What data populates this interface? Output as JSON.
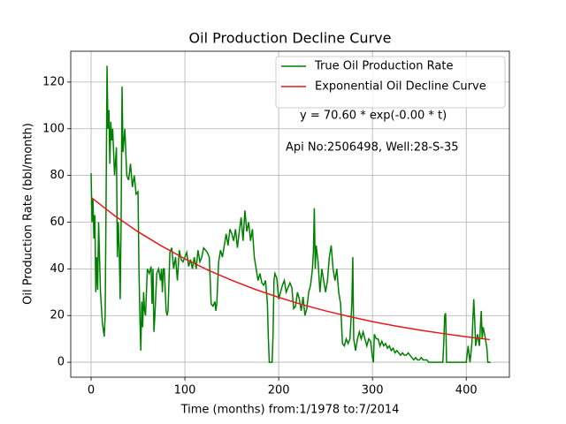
{
  "chart_data": {
    "type": "line",
    "title": "Oil Production Decline Curve",
    "x_label": "Time (months) from:1/1978 to:7/2014",
    "y_label": "Oil Production Rate (bbl/month)",
    "annotations": [
      "y = 70.60 * exp(-0.00 * t)",
      "Api No:2506498, Well:28-S-35"
    ],
    "xlim": [
      -21.7,
      446
    ],
    "ylim": [
      -6.4,
      133.2
    ],
    "xticks": [
      0,
      100,
      200,
      300,
      400
    ],
    "yticks": [
      0,
      20,
      40,
      60,
      80,
      100,
      120
    ],
    "grid": true,
    "legend": "upper right",
    "series": [
      {
        "name": "True Oil Production Rate",
        "color": "#008000",
        "x": [
          0,
          1,
          2,
          3,
          4,
          5,
          6,
          7,
          8,
          9,
          10,
          12,
          14,
          15,
          16,
          17,
          18,
          19,
          20,
          21,
          22,
          23,
          25,
          27,
          28,
          29,
          30,
          31,
          32,
          33,
          34,
          36,
          38,
          40,
          42,
          44,
          46,
          48,
          50,
          51,
          52,
          53,
          54,
          55,
          56,
          57,
          58,
          60,
          62,
          64,
          65,
          66,
          67,
          68,
          70,
          72,
          74,
          75,
          76,
          77,
          78,
          80,
          81,
          82,
          84,
          86,
          88,
          90,
          92,
          94,
          96,
          98,
          100,
          102,
          104,
          106,
          108,
          110,
          112,
          114,
          116,
          118,
          120,
          122,
          124,
          126,
          128,
          130,
          132,
          133,
          134,
          136,
          138,
          140,
          142,
          144,
          146,
          148,
          150,
          152,
          154,
          156,
          158,
          160,
          162,
          164,
          166,
          168,
          170,
          172,
          174,
          176,
          178,
          180,
          182,
          184,
          186,
          188,
          189,
          190,
          193,
          194,
          195,
          196,
          198,
          200,
          202,
          204,
          206,
          208,
          210,
          212,
          214,
          216,
          218,
          220,
          222,
          224,
          226,
          228,
          230,
          232,
          234,
          236,
          237,
          238,
          239,
          240,
          242,
          244,
          246,
          248,
          250,
          252,
          254,
          256,
          258,
          260,
          262,
          264,
          266,
          268,
          270,
          272,
          274,
          276,
          278,
          279,
          280,
          282,
          284,
          286,
          288,
          290,
          292,
          294,
          296,
          298,
          300,
          301,
          302,
          304,
          306,
          308,
          310,
          312,
          314,
          316,
          318,
          320,
          322,
          324,
          326,
          328,
          330,
          332,
          334,
          336,
          338,
          340,
          342,
          344,
          346,
          348,
          350,
          352,
          354,
          356,
          358,
          360,
          375,
          376,
          377,
          378,
          379,
          400,
          402,
          404,
          406,
          408,
          409,
          410,
          412,
          414,
          416,
          417,
          418,
          420,
          422,
          423,
          426
        ],
        "values": [
          81,
          60,
          70,
          53,
          63,
          30,
          45,
          31,
          60,
          45,
          30,
          17,
          11,
          20,
          70,
          127,
          100,
          108,
          85,
          103,
          95,
          100,
          80,
          92,
          45,
          60,
          48,
          27,
          60,
          118,
          90,
          100,
          80,
          78,
          85,
          75,
          80,
          72,
          73,
          40,
          20,
          5,
          26,
          15,
          30,
          22,
          20,
          40,
          38,
          41,
          25,
          40,
          13,
          20,
          38,
          40,
          35,
          40,
          30,
          40,
          40,
          22,
          20,
          22,
          47,
          49,
          40,
          45,
          35,
          48,
          44,
          43,
          45,
          47,
          41,
          44,
          40,
          45,
          40,
          48,
          43,
          45,
          49,
          48,
          47,
          45,
          25,
          24,
          26,
          22,
          25,
          43,
          48,
          45,
          50,
          55,
          50,
          57,
          55,
          52,
          57,
          49,
          56,
          62,
          52,
          65,
          56,
          60,
          52,
          57,
          45,
          40,
          35,
          38,
          34,
          33,
          35,
          25,
          10,
          0,
          0,
          12,
          35,
          38,
          36,
          27,
          30,
          33,
          35,
          30,
          32,
          34,
          32,
          23,
          24,
          30,
          27,
          22,
          28,
          20,
          23,
          30,
          33,
          40,
          47,
          66,
          40,
          50,
          43,
          30,
          40,
          35,
          30,
          35,
          45,
          50,
          40,
          35,
          40,
          30,
          25,
          8,
          7,
          10,
          8,
          10,
          25,
          45,
          10,
          5,
          10,
          13,
          10,
          13,
          10,
          7,
          10,
          9,
          2,
          0,
          12,
          10,
          10,
          7,
          9,
          7,
          8,
          6,
          7,
          5,
          6,
          4,
          5,
          4,
          3,
          4,
          3,
          3,
          4,
          3,
          2,
          1,
          2,
          1,
          1,
          2,
          1,
          1,
          1,
          0,
          0,
          8,
          20,
          21,
          0,
          0,
          7,
          0,
          8,
          27,
          18,
          7,
          12,
          7,
          22,
          10,
          15,
          11,
          6,
          0,
          0
        ]
      },
      {
        "name": "Exponential Oil Decline Curve",
        "color": "#e31a1c",
        "x": [
          0,
          25,
          50,
          75,
          100,
          125,
          150,
          175,
          200,
          225,
          250,
          275,
          300,
          325,
          350,
          375,
          400,
          425
        ],
        "values": [
          70.6,
          62.8,
          55.9,
          49.8,
          44.3,
          39.4,
          35.1,
          31.2,
          27.8,
          24.7,
          22.0,
          19.6,
          17.4,
          15.5,
          13.8,
          12.3,
          10.9,
          9.7
        ]
      }
    ]
  }
}
